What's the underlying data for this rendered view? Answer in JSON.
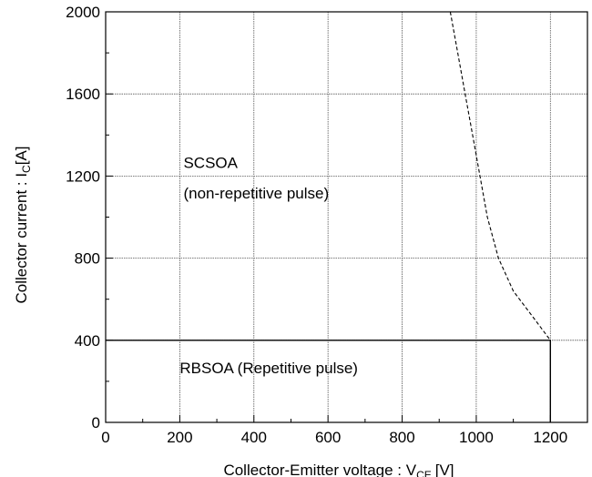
{
  "chart_data": {
    "type": "line",
    "xlabel": "Collector-Emitter voltage : V",
    "xlabel_sub": "CE",
    "xlabel_unit": "[V]",
    "ylabel": "Collector current : I",
    "ylabel_sub": "C",
    "ylabel_unit": "[A]",
    "xlim": [
      0,
      1300
    ],
    "ylim": [
      0,
      2000
    ],
    "xticks": [
      0,
      200,
      400,
      600,
      800,
      1000,
      1200
    ],
    "yticks": [
      0,
      400,
      800,
      1200,
      1600,
      2000
    ],
    "x_tick_labels": [
      "0",
      "200",
      "400",
      "600",
      "800",
      "1000",
      "1200"
    ],
    "y_tick_labels": [
      "0",
      "400",
      "800",
      "1200",
      "1600",
      "2000"
    ],
    "grid": true,
    "series": [
      {
        "style": "dashed",
        "x": [
          930,
          950,
          970,
          990,
          1010,
          1030,
          1060,
          1100,
          1150,
          1200
        ],
        "y": [
          2000,
          1800,
          1600,
          1400,
          1200,
          1000,
          800,
          640,
          520,
          400
        ]
      },
      {
        "style": "solid",
        "x": [
          0,
          1200,
          1200
        ],
        "y": [
          400,
          400,
          0
        ]
      }
    ],
    "annotations": [
      {
        "text": "SCSOA",
        "x": 210,
        "y": 1240
      },
      {
        "text": "(non-repetitive pulse)",
        "x": 210,
        "y": 1090
      },
      {
        "text": "RBSOA (Repetitive pulse)",
        "x": 200,
        "y": 240
      }
    ]
  }
}
